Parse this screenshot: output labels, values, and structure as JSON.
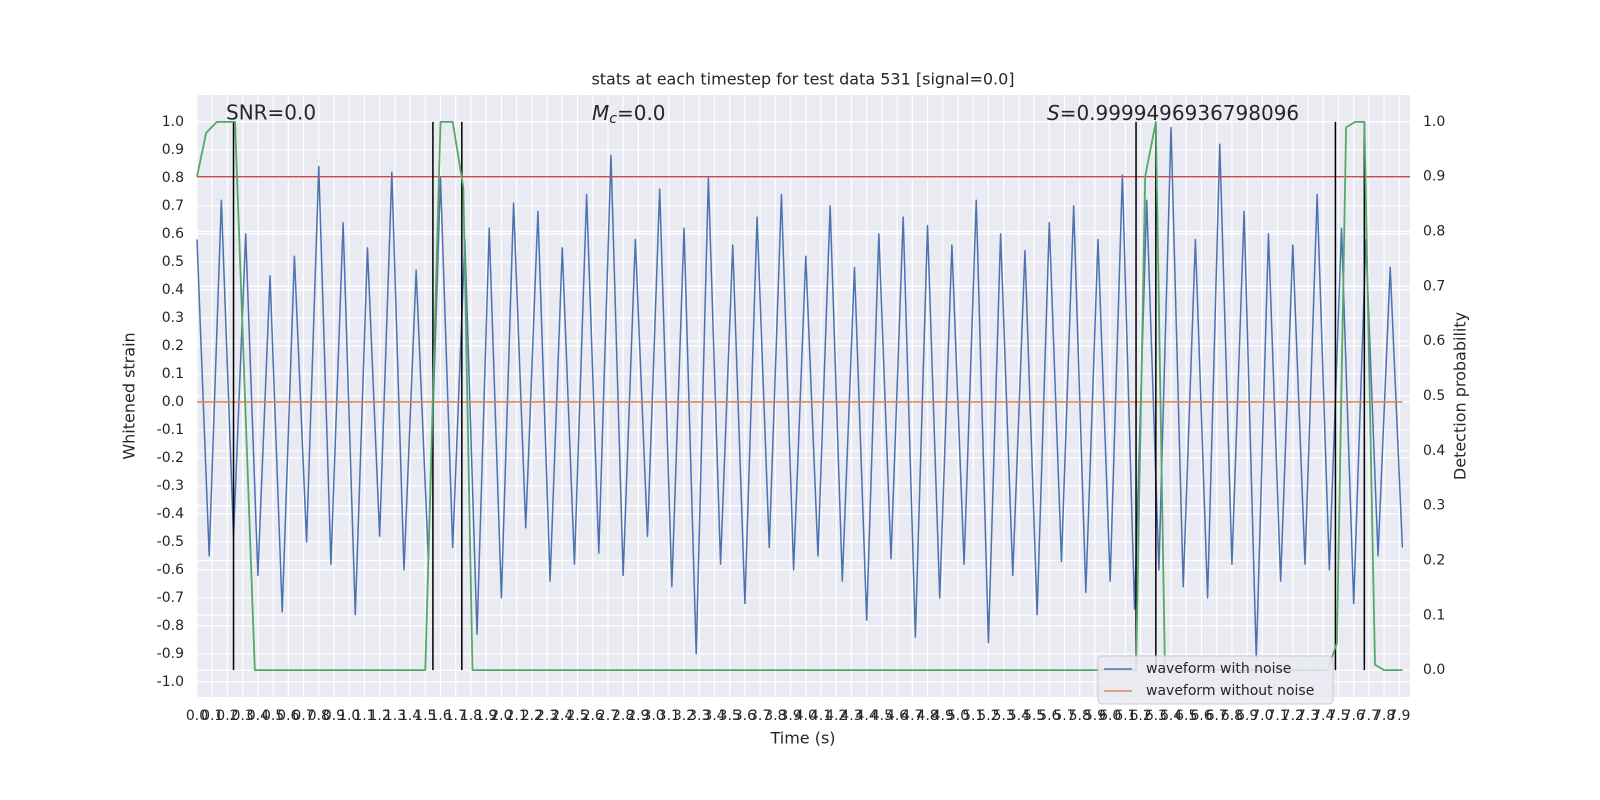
{
  "chart_data": {
    "type": "line",
    "title": "stats at each timestep for test data 531 [signal=0.0]",
    "xlabel": "Time (s)",
    "ylabel": "Whitened strain",
    "y2label": "Detection probability",
    "xlim": [
      0,
      7.97
    ],
    "ylim": [
      -1.054,
      1.096
    ],
    "y2lim": [
      -0.049,
      1.049
    ],
    "xticks": [
      {
        "value": 0,
        "label": "0.0"
      },
      0.1,
      0.2,
      0.3,
      0.4,
      0.5,
      0.6,
      0.7,
      0.8,
      0.9,
      {
        "value": 1,
        "label": "1.0"
      },
      1.1,
      1.2,
      1.3,
      1.4,
      1.5,
      1.6,
      1.7,
      1.8,
      1.9,
      {
        "value": 2,
        "label": "2.0"
      },
      2.1,
      2.2,
      2.3,
      2.4,
      2.5,
      2.6,
      2.7,
      2.8,
      2.9,
      {
        "value": 3,
        "label": "3.0"
      },
      3.1,
      3.2,
      3.3,
      3.4,
      3.5,
      3.6,
      3.7,
      3.8,
      3.9,
      {
        "value": 4,
        "label": "4.0"
      },
      4.1,
      4.2,
      4.3,
      4.4,
      4.5,
      4.6,
      4.7,
      4.8,
      4.9,
      {
        "value": 5,
        "label": "5.0"
      },
      5.1,
      5.2,
      5.3,
      5.4,
      5.5,
      5.6,
      5.7,
      5.8,
      5.9,
      {
        "value": 6,
        "label": "6.0"
      },
      6.1,
      6.2,
      6.3,
      6.4,
      6.5,
      6.6,
      6.7,
      6.8,
      6.9,
      {
        "value": 7,
        "label": "7.0"
      },
      7.1,
      7.2,
      7.3,
      7.4,
      7.5,
      7.6,
      7.7,
      7.8,
      7.9
    ],
    "yticks": [
      {
        "value": -1,
        "label": "-1.0"
      },
      -0.9,
      -0.8,
      -0.7,
      -0.6,
      -0.5,
      -0.4,
      -0.3,
      -0.2,
      -0.1,
      {
        "value": 0,
        "label": "0.0"
      },
      0.1,
      0.2,
      0.3,
      0.4,
      0.5,
      0.6,
      0.7,
      0.8,
      0.9,
      {
        "value": 1,
        "label": "1.0"
      }
    ],
    "y2ticks": [
      {
        "value": 0,
        "label": "0.0"
      },
      0.1,
      0.2,
      0.3,
      0.4,
      0.5,
      0.6,
      0.7,
      0.8,
      0.9,
      {
        "value": 1,
        "label": "1.0"
      }
    ],
    "grid": true,
    "legend": "lower right",
    "series": [
      {
        "name": "waveform with noise",
        "color": "#4c72b0",
        "x": [
          0,
          0.08,
          0.16,
          0.24,
          0.32,
          0.4,
          0.48,
          0.56,
          0.64,
          0.72,
          0.8,
          0.88,
          0.96,
          1.04,
          1.12,
          1.2,
          1.28,
          1.36,
          1.44,
          1.52,
          1.6,
          1.68,
          1.76,
          1.84,
          1.92,
          2,
          2.08,
          2.16,
          2.24,
          2.32,
          2.4,
          2.48,
          2.56,
          2.64,
          2.72,
          2.8,
          2.88,
          2.96,
          3.04,
          3.12,
          3.2,
          3.28,
          3.36,
          3.44,
          3.52,
          3.6,
          3.68,
          3.76,
          3.84,
          3.92,
          4,
          4.08,
          4.16,
          4.24,
          4.32,
          4.4,
          4.48,
          4.56,
          4.64,
          4.72,
          4.8,
          4.88,
          4.96,
          5.04,
          5.12,
          5.2,
          5.28,
          5.36,
          5.44,
          5.52,
          5.6,
          5.68,
          5.76,
          5.84,
          5.92,
          6,
          6.08,
          6.16,
          6.24,
          6.32,
          6.4,
          6.48,
          6.56,
          6.64,
          6.72,
          6.8,
          6.88,
          6.96,
          7.04,
          7.12,
          7.2,
          7.28,
          7.36,
          7.44,
          7.52,
          7.6,
          7.68,
          7.76,
          7.84,
          7.92
        ],
        "values": [
          0.58,
          -0.55,
          0.72,
          -0.48,
          0.6,
          -0.62,
          0.45,
          -0.75,
          0.52,
          -0.5,
          0.84,
          -0.58,
          0.64,
          -0.76,
          0.55,
          -0.48,
          0.82,
          -0.6,
          0.47,
          -0.56,
          0.8,
          -0.52,
          0.58,
          -0.83,
          0.62,
          -0.7,
          0.71,
          -0.45,
          0.68,
          -0.64,
          0.55,
          -0.58,
          0.74,
          -0.54,
          0.88,
          -0.62,
          0.58,
          -0.48,
          0.76,
          -0.66,
          0.62,
          -0.9,
          0.8,
          -0.58,
          0.56,
          -0.72,
          0.66,
          -0.52,
          0.74,
          -0.6,
          0.52,
          -0.55,
          0.7,
          -0.64,
          0.48,
          -0.78,
          0.6,
          -0.56,
          0.66,
          -0.84,
          0.63,
          -0.7,
          0.56,
          -0.58,
          0.72,
          -0.86,
          0.6,
          -0.62,
          0.54,
          -0.76,
          0.64,
          -0.57,
          0.7,
          -0.68,
          0.58,
          -0.64,
          0.81,
          -0.74,
          0.72,
          -0.6,
          0.98,
          -0.66,
          0.58,
          -0.7,
          0.92,
          -0.58,
          0.68,
          -0.92,
          0.6,
          -0.64,
          0.56,
          -0.58,
          0.74,
          -0.6,
          0.62,
          -0.72,
          0.58,
          -0.55,
          0.48,
          -0.52
        ]
      },
      {
        "name": "waveform without noise",
        "color": "#dd8452",
        "x": [
          0,
          7.92
        ],
        "values": [
          0,
          0
        ]
      }
    ],
    "detection": {
      "color": "#55a868",
      "axis": "y2",
      "x": [
        0,
        0.06,
        0.13,
        0.19,
        0.25,
        0.38,
        1.5,
        1.6,
        1.68,
        1.75,
        1.81,
        6.17,
        6.23,
        6.3,
        6.36,
        7.43,
        7.49,
        7.55,
        7.61,
        7.67,
        7.74,
        7.8,
        7.92
      ],
      "values": [
        0.9,
        0.98,
        1.0,
        1.0,
        1.0,
        0.0,
        0.0,
        1.0,
        1.0,
        0.88,
        0.0,
        0.0,
        0.9,
        1.0,
        0.0,
        0.0,
        0.05,
        0.99,
        1.0,
        1.0,
        0.01,
        0.0,
        0.0
      ]
    },
    "threshold": {
      "value": 0.9,
      "color": "#c44e52",
      "axis": "y2"
    },
    "vlines": {
      "x": [
        0.24,
        1.55,
        1.74,
        6.17,
        6.3,
        7.48,
        7.67
      ],
      "ymin": 0,
      "ymax": 1,
      "axis": "y2",
      "color": "#000000"
    },
    "annotations": [
      {
        "text": "SNR=0.0"
      },
      {
        "symbol": "M",
        "subscript": "c",
        "text": "=0.0"
      },
      {
        "symbol": "S",
        "text": "=0.9999496936798096"
      }
    ]
  }
}
